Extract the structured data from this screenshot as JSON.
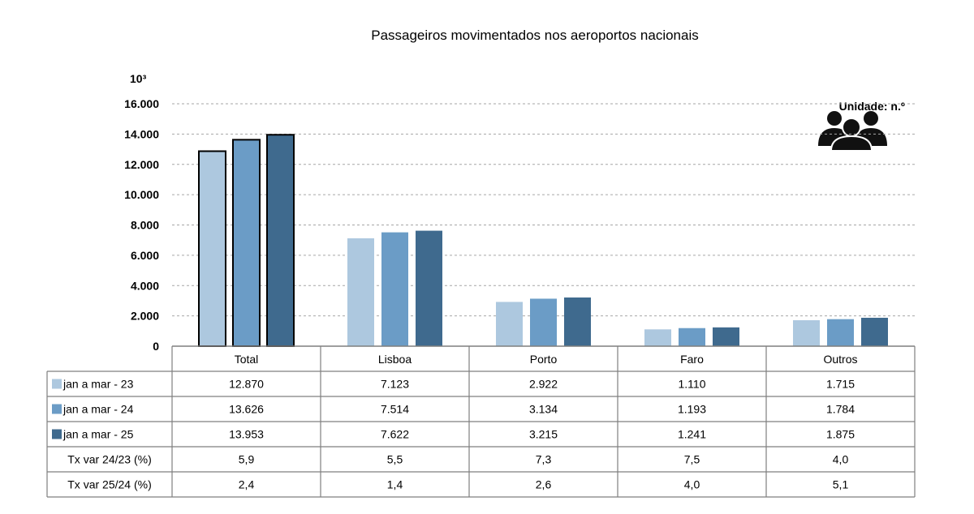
{
  "chart_data": {
    "type": "bar",
    "title": "Passageiros movimentados nos aeroportos nacionais",
    "unit_label": "Unidade: n.º",
    "y_scale_label": "10³",
    "ylim": [
      0,
      16000
    ],
    "yticks": [
      "16.000",
      "14.000",
      "12.000",
      "10.000",
      "8.000",
      "6.000",
      "4.000",
      "2.000",
      "0"
    ],
    "ytick_values": [
      16000,
      14000,
      12000,
      10000,
      8000,
      6000,
      4000,
      2000,
      0
    ],
    "grid": true,
    "categories": [
      "Total",
      "Lisboa",
      "Porto",
      "Faro",
      "Outros"
    ],
    "highlighted_category": "Total",
    "series": [
      {
        "name": "jan a mar - 23",
        "color": "#adc8df",
        "values": [
          12870,
          7123,
          2922,
          1110,
          1715
        ],
        "labels": [
          "12.870",
          "7.123",
          "2.922",
          "1.110",
          "1.715"
        ]
      },
      {
        "name": "jan a mar - 24",
        "color": "#6b9cc6",
        "values": [
          13626,
          7514,
          3134,
          1193,
          1784
        ],
        "labels": [
          "13.626",
          "7.514",
          "3.134",
          "1.193",
          "1.784"
        ]
      },
      {
        "name": "jan a mar - 25",
        "color": "#3f6a8e",
        "values": [
          13953,
          7622,
          3215,
          1241,
          1875
        ],
        "labels": [
          "13.953",
          "7.622",
          "3.215",
          "1.241",
          "1.875"
        ]
      }
    ],
    "extra_rows": [
      {
        "name": "Tx var 24/23 (%)",
        "values": [
          "5,9",
          "5,5",
          "7,3",
          "7,5",
          "4,0"
        ]
      },
      {
        "name": "Tx var 25/24 (%)",
        "values": [
          "2,4",
          "1,4",
          "2,6",
          "4,0",
          "5,1"
        ]
      }
    ],
    "icon": "people-group-icon"
  }
}
